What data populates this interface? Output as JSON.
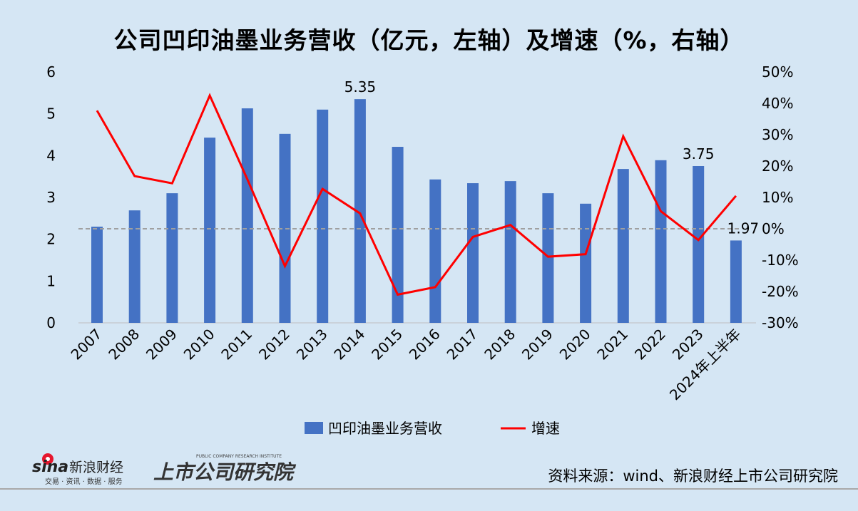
{
  "title": "公司凹印油墨业务营收（亿元，左轴）及增速（%，右轴）",
  "source": "资料来源：wind、新浪财经上市公司研究院",
  "logos": {
    "sina": "sina 新浪财经",
    "sina_sub": "交易 · 资讯 · 数据 · 服务",
    "institute": "上市公司研究院",
    "institute_en": "PUBLIC COMPANY RESEARCH INSTITUTE"
  },
  "chart_data": {
    "type": "bar+line",
    "title": "公司凹印油墨业务营收（亿元，左轴）及增速（%，右轴）",
    "categories": [
      "2007",
      "2008",
      "2009",
      "2010",
      "2011",
      "2012",
      "2013",
      "2014",
      "2015",
      "2016",
      "2017",
      "2018",
      "2019",
      "2020",
      "2021",
      "2022",
      "2023",
      "2024年上半年"
    ],
    "series": [
      {
        "name": "凹印油墨业务营收",
        "type": "bar",
        "axis": "left",
        "color": "#4472c4",
        "values": [
          2.3,
          2.69,
          3.1,
          4.43,
          5.13,
          4.52,
          5.1,
          5.35,
          4.21,
          3.43,
          3.34,
          3.39,
          3.1,
          2.85,
          3.68,
          3.89,
          3.75,
          1.97
        ]
      },
      {
        "name": "增速",
        "type": "line",
        "axis": "right",
        "color": "#ff0000",
        "values": [
          37.7,
          16.8,
          14.5,
          42.5,
          15.8,
          -11.9,
          12.7,
          4.9,
          -21.0,
          -18.6,
          -2.6,
          1.2,
          -8.9,
          -8.1,
          29.5,
          5.6,
          -3.6,
          10.5
        ]
      }
    ],
    "data_labels": [
      {
        "index": 7,
        "text": "5.35"
      },
      {
        "index": 16,
        "text": "3.75"
      },
      {
        "index": 17,
        "text": "1.97"
      }
    ],
    "left_axis": {
      "ylim": [
        0,
        6
      ],
      "ticks": [
        "0",
        "1",
        "2",
        "3",
        "4",
        "5",
        "6"
      ]
    },
    "right_axis": {
      "ylim": [
        -30,
        50
      ],
      "ticks": [
        "-30%",
        "-20%",
        "-10%",
        "0%",
        "10%",
        "20%",
        "30%",
        "40%",
        "50%"
      ]
    },
    "reference_line": {
      "value": 0,
      "axis": "right",
      "style": "dashed",
      "color": "#a0a0a0"
    },
    "legend": {
      "placement": "bottom",
      "entries": [
        "凹印油墨业务营收",
        "增速"
      ]
    },
    "grid": false
  }
}
